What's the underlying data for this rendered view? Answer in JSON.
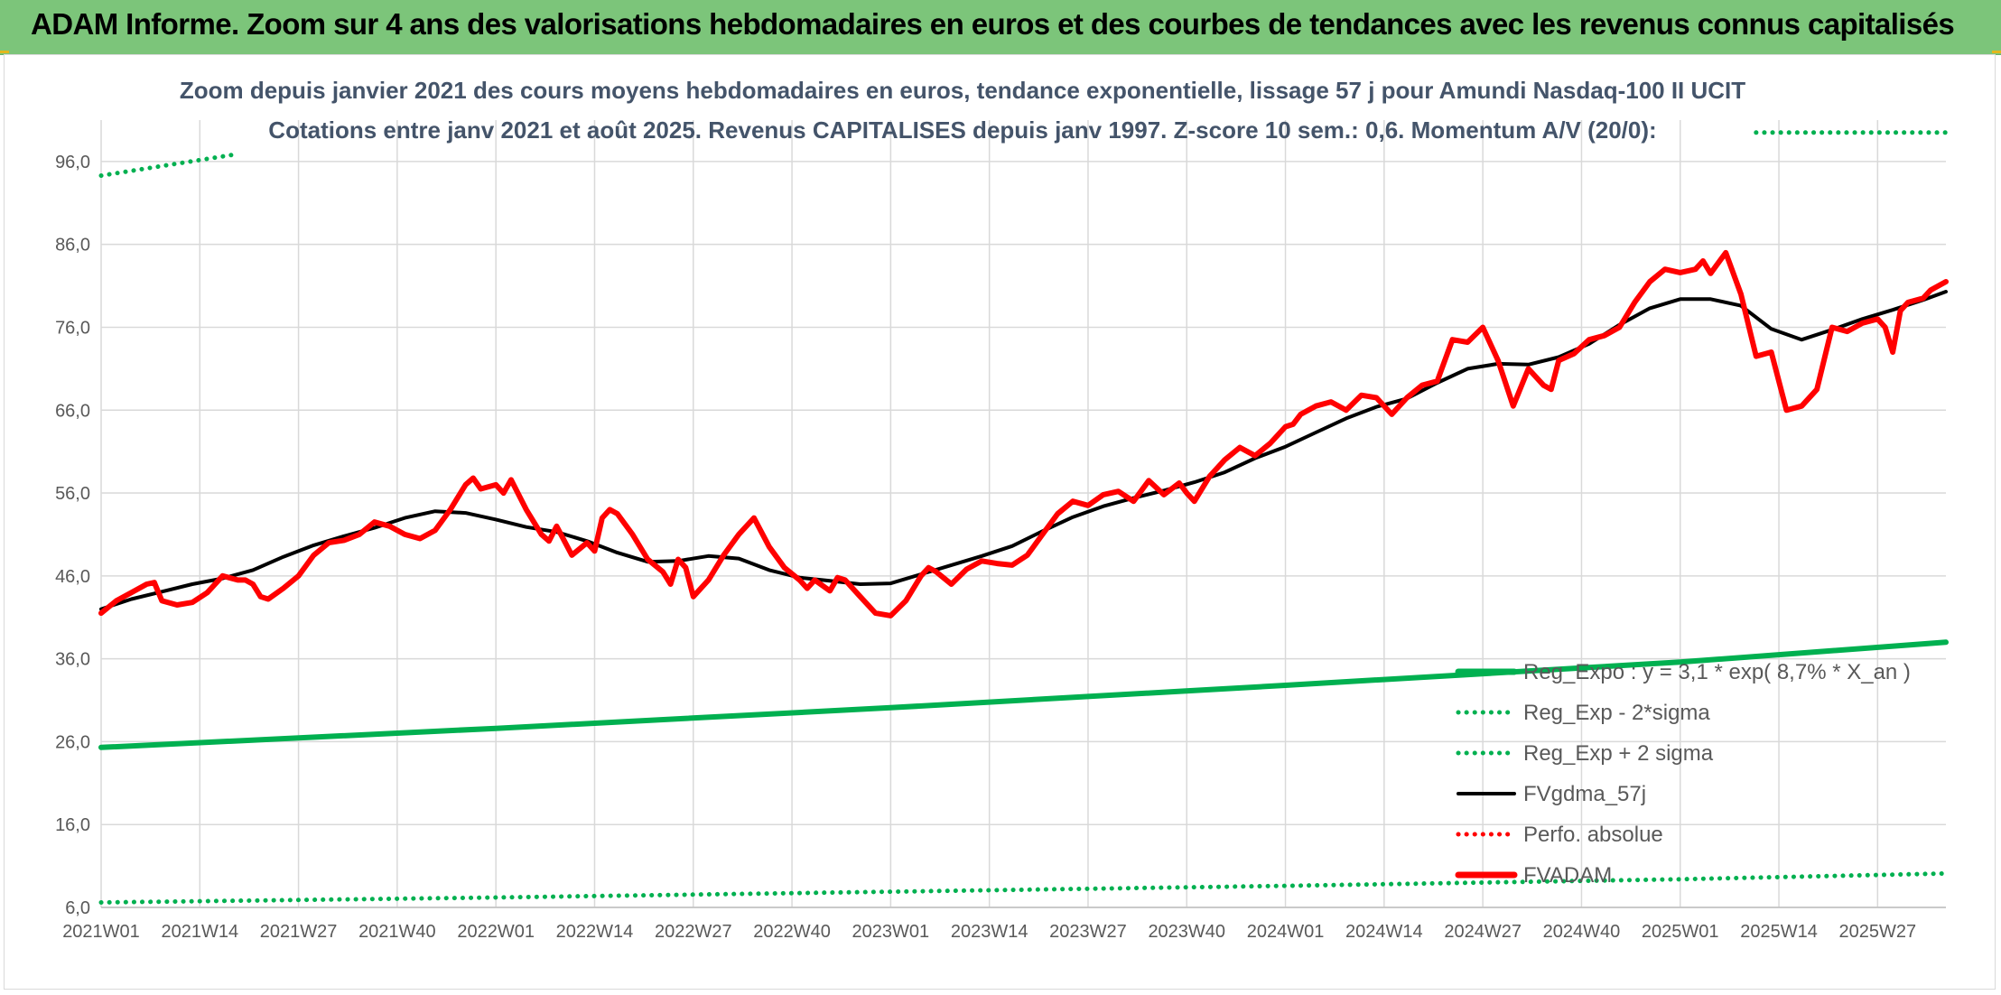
{
  "header": {
    "title": "ADAM Informe. Zoom sur 4 ans des valorisations hebdomadaires en euros et des courbes de tendances avec les revenus connus capitalisés"
  },
  "colors": {
    "banner": "#7cc57a",
    "fvadam": "#ff0000",
    "fvgdma": "#000000",
    "reg_expo": "#00b050",
    "perfo": "#ff0000",
    "grid": "#d9d9d9",
    "title_text": "#44546a"
  },
  "chart_data": {
    "type": "line",
    "title": "Zoom depuis janvier 2021 des cours moyens hebdomadaires en euros, tendance exponentielle, lissage 57 j pour Amundi Nasdaq-100 II UCIT",
    "subtitle": "Cotations entre janv 2021 et août 2025. Revenus CAPITALISES depuis janv 1997. Z-score 10 sem.: 0,6. Momentum A/V (20/0):",
    "xlabel": "",
    "ylabel": "",
    "ylim": [
      6,
      101
    ],
    "y_ticks": [
      "6,0",
      "16,0",
      "26,0",
      "36,0",
      "46,0",
      "56,0",
      "66,0",
      "76,0",
      "86,0",
      "96,0"
    ],
    "grid": true,
    "legend_position": "bottom-right",
    "x_range_weeks": [
      0,
      243
    ],
    "x_ticks": [
      {
        "label": "2021W01",
        "week": 0
      },
      {
        "label": "2021W14",
        "week": 13
      },
      {
        "label": "2021W27",
        "week": 26
      },
      {
        "label": "2021W40",
        "week": 39
      },
      {
        "label": "2022W01",
        "week": 52
      },
      {
        "label": "2022W14",
        "week": 65
      },
      {
        "label": "2022W27",
        "week": 78
      },
      {
        "label": "2022W40",
        "week": 91
      },
      {
        "label": "2023W01",
        "week": 104
      },
      {
        "label": "2023W14",
        "week": 117
      },
      {
        "label": "2023W27",
        "week": 130
      },
      {
        "label": "2023W40",
        "week": 143
      },
      {
        "label": "2024W01",
        "week": 156
      },
      {
        "label": "2024W14",
        "week": 169
      },
      {
        "label": "2024W27",
        "week": 182
      },
      {
        "label": "2024W40",
        "week": 195
      },
      {
        "label": "2025W01",
        "week": 208
      },
      {
        "label": "2025W14",
        "week": 221
      },
      {
        "label": "2025W27",
        "week": 234
      }
    ],
    "series": [
      {
        "name": "Reg_Expo : y = 3,1 * exp( 8,7% *  X_an )",
        "style": "solid-thick",
        "color": "#00b050",
        "points": [
          [
            0,
            25.3
          ],
          [
            52,
            27.6
          ],
          [
            104,
            30.1
          ],
          [
            156,
            32.8
          ],
          [
            208,
            35.6
          ],
          [
            243,
            38.0
          ]
        ]
      },
      {
        "name": "Reg_Exp - 2*sigma",
        "style": "dotted",
        "color": "#00b050",
        "points": [
          [
            0,
            6.6
          ],
          [
            52,
            7.2
          ],
          [
            104,
            7.9
          ],
          [
            156,
            8.6
          ],
          [
            208,
            9.4
          ],
          [
            243,
            10.1
          ]
        ]
      },
      {
        "name": "Reg_Exp + 2 sigma",
        "style": "dotted",
        "color": "#00b050",
        "segments": [
          [
            [
              0,
              94.3
            ],
            [
              18,
              96.9
            ]
          ],
          [
            [
              218,
              99.5
            ],
            [
              243,
              99.5
            ]
          ]
        ]
      },
      {
        "name": "FVgdma_57j",
        "style": "solid",
        "color": "#000000",
        "points": [
          [
            0,
            42
          ],
          [
            4,
            43.2
          ],
          [
            8,
            44.1
          ],
          [
            12,
            45
          ],
          [
            16,
            45.7
          ],
          [
            20,
            46.7
          ],
          [
            24,
            48.3
          ],
          [
            28,
            49.7
          ],
          [
            32,
            50.8
          ],
          [
            36,
            51.8
          ],
          [
            40,
            53
          ],
          [
            44,
            53.8
          ],
          [
            48,
            53.6
          ],
          [
            52,
            52.8
          ],
          [
            56,
            51.9
          ],
          [
            60,
            51.3
          ],
          [
            64,
            50.2
          ],
          [
            68,
            48.8
          ],
          [
            72,
            47.7
          ],
          [
            76,
            47.8
          ],
          [
            80,
            48.4
          ],
          [
            84,
            48.1
          ],
          [
            88,
            46.7
          ],
          [
            92,
            45.8
          ],
          [
            96,
            45.4
          ],
          [
            100,
            45
          ],
          [
            104,
            45.1
          ],
          [
            108,
            46.2
          ],
          [
            112,
            47.3
          ],
          [
            116,
            48.4
          ],
          [
            120,
            49.6
          ],
          [
            124,
            51.4
          ],
          [
            128,
            53.1
          ],
          [
            132,
            54.4
          ],
          [
            136,
            55.4
          ],
          [
            140,
            56.3
          ],
          [
            144,
            57.3
          ],
          [
            148,
            58.5
          ],
          [
            152,
            60.2
          ],
          [
            156,
            61.6
          ],
          [
            160,
            63.3
          ],
          [
            164,
            65
          ],
          [
            168,
            66.4
          ],
          [
            172,
            67.4
          ],
          [
            176,
            69.3
          ],
          [
            180,
            71
          ],
          [
            184,
            71.6
          ],
          [
            188,
            71.5
          ],
          [
            192,
            72.4
          ],
          [
            196,
            74
          ],
          [
            200,
            76.3
          ],
          [
            204,
            78.3
          ],
          [
            208,
            79.4
          ],
          [
            212,
            79.4
          ],
          [
            216,
            78.6
          ],
          [
            220,
            75.8
          ],
          [
            224,
            74.5
          ],
          [
            228,
            75.7
          ],
          [
            232,
            77
          ],
          [
            236,
            78.1
          ],
          [
            240,
            79.3
          ],
          [
            243,
            80.3
          ]
        ]
      },
      {
        "name": "Perfo. absolue",
        "style": "dotted",
        "color": "#ff0000",
        "points": []
      },
      {
        "name": "FVADAM",
        "style": "solid-thick",
        "color": "#ff0000",
        "points": [
          [
            0,
            41.5
          ],
          [
            2,
            43
          ],
          [
            4,
            44
          ],
          [
            6,
            45
          ],
          [
            7,
            45.2
          ],
          [
            8,
            43
          ],
          [
            10,
            42.5
          ],
          [
            12,
            42.8
          ],
          [
            14,
            44
          ],
          [
            16,
            46
          ],
          [
            18,
            45.5
          ],
          [
            19,
            45.5
          ],
          [
            20,
            45
          ],
          [
            21,
            43.5
          ],
          [
            22,
            43.2
          ],
          [
            24,
            44.5
          ],
          [
            26,
            46
          ],
          [
            28,
            48.5
          ],
          [
            30,
            50
          ],
          [
            32,
            50.3
          ],
          [
            34,
            51
          ],
          [
            36,
            52.5
          ],
          [
            38,
            52
          ],
          [
            40,
            51
          ],
          [
            42,
            50.5
          ],
          [
            44,
            51.5
          ],
          [
            46,
            54
          ],
          [
            48,
            57
          ],
          [
            49,
            57.8
          ],
          [
            50,
            56.5
          ],
          [
            52,
            57
          ],
          [
            53,
            56
          ],
          [
            54,
            57.6
          ],
          [
            56,
            54
          ],
          [
            58,
            51
          ],
          [
            59,
            50.2
          ],
          [
            60,
            52
          ],
          [
            62,
            48.5
          ],
          [
            64,
            50
          ],
          [
            65,
            49
          ],
          [
            66,
            53
          ],
          [
            67,
            54
          ],
          [
            68,
            53.5
          ],
          [
            70,
            51
          ],
          [
            72,
            48
          ],
          [
            74,
            46.5
          ],
          [
            75,
            45
          ],
          [
            76,
            48
          ],
          [
            77,
            47
          ],
          [
            78,
            43.5
          ],
          [
            80,
            45.5
          ],
          [
            82,
            48.5
          ],
          [
            84,
            51
          ],
          [
            86,
            53
          ],
          [
            88,
            49.5
          ],
          [
            90,
            47
          ],
          [
            92,
            45.5
          ],
          [
            93,
            44.5
          ],
          [
            94,
            45.5
          ],
          [
            96,
            44.2
          ],
          [
            97,
            45.8
          ],
          [
            98,
            45.5
          ],
          [
            100,
            43.5
          ],
          [
            102,
            41.5
          ],
          [
            104,
            41.2
          ],
          [
            106,
            43
          ],
          [
            108,
            46
          ],
          [
            109,
            47
          ],
          [
            110,
            46.5
          ],
          [
            112,
            45
          ],
          [
            114,
            46.8
          ],
          [
            116,
            47.8
          ],
          [
            118,
            47.5
          ],
          [
            120,
            47.3
          ],
          [
            122,
            48.5
          ],
          [
            124,
            51
          ],
          [
            126,
            53.5
          ],
          [
            128,
            55
          ],
          [
            130,
            54.5
          ],
          [
            132,
            55.8
          ],
          [
            134,
            56.2
          ],
          [
            136,
            55
          ],
          [
            138,
            57.5
          ],
          [
            140,
            55.8
          ],
          [
            142,
            57.2
          ],
          [
            143,
            56
          ],
          [
            144,
            55
          ],
          [
            146,
            58
          ],
          [
            148,
            60
          ],
          [
            150,
            61.5
          ],
          [
            152,
            60.5
          ],
          [
            154,
            62
          ],
          [
            156,
            64
          ],
          [
            157,
            64.3
          ],
          [
            158,
            65.5
          ],
          [
            160,
            66.5
          ],
          [
            162,
            67
          ],
          [
            164,
            66
          ],
          [
            166,
            67.8
          ],
          [
            168,
            67.5
          ],
          [
            170,
            65.5
          ],
          [
            172,
            67.5
          ],
          [
            174,
            69
          ],
          [
            176,
            69.5
          ],
          [
            178,
            74.5
          ],
          [
            180,
            74.2
          ],
          [
            182,
            76
          ],
          [
            184,
            72
          ],
          [
            186,
            66.5
          ],
          [
            188,
            71
          ],
          [
            190,
            69
          ],
          [
            191,
            68.5
          ],
          [
            192,
            72
          ],
          [
            194,
            72.8
          ],
          [
            196,
            74.5
          ],
          [
            198,
            75
          ],
          [
            200,
            76
          ],
          [
            202,
            79
          ],
          [
            204,
            81.5
          ],
          [
            206,
            83
          ],
          [
            208,
            82.6
          ],
          [
            210,
            83
          ],
          [
            211,
            84
          ],
          [
            212,
            82.5
          ],
          [
            214,
            85
          ],
          [
            216,
            80
          ],
          [
            218,
            72.5
          ],
          [
            220,
            73
          ],
          [
            222,
            66
          ],
          [
            224,
            66.5
          ],
          [
            226,
            68.5
          ],
          [
            228,
            76
          ],
          [
            230,
            75.5
          ],
          [
            232,
            76.5
          ],
          [
            234,
            77
          ],
          [
            235,
            76
          ],
          [
            236,
            73
          ],
          [
            237,
            78
          ],
          [
            238,
            79
          ],
          [
            240,
            79.5
          ],
          [
            241,
            80.5
          ],
          [
            242,
            81
          ],
          [
            243,
            81.5
          ]
        ]
      }
    ]
  }
}
